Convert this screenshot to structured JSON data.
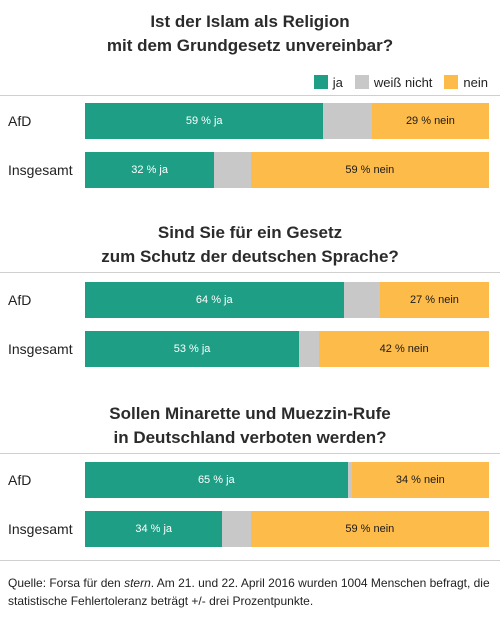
{
  "colors": {
    "ja": "#1e9e85",
    "weiss_nicht": "#c8c8c8",
    "nein": "#fdbb4a"
  },
  "legend": {
    "ja": "ja",
    "weiss_nicht": "weiß nicht",
    "nein": "nein"
  },
  "chart_data": [
    {
      "type": "bar",
      "orientation": "horizontal",
      "stacked": true,
      "title": [
        "Ist der Islam als Religion",
        "mit dem Grundgesetz unvereinbar?"
      ],
      "categories": [
        "AfD",
        "Insgesamt"
      ],
      "series": [
        {
          "name": "ja",
          "values": [
            59,
            32
          ],
          "labels": [
            "59 % ja",
            "32 % ja"
          ]
        },
        {
          "name": "weiß nicht",
          "values": [
            12,
            9
          ],
          "labels": [
            "",
            ""
          ]
        },
        {
          "name": "nein",
          "values": [
            29,
            59
          ],
          "labels": [
            "29 % nein",
            "59 % nein"
          ]
        }
      ],
      "xlim": [
        0,
        100
      ]
    },
    {
      "type": "bar",
      "orientation": "horizontal",
      "stacked": true,
      "title": [
        "Sind Sie für ein Gesetz",
        "zum Schutz der deutschen Sprache?"
      ],
      "categories": [
        "AfD",
        "Insgesamt"
      ],
      "series": [
        {
          "name": "ja",
          "values": [
            64,
            53
          ],
          "labels": [
            "64 % ja",
            "53 % ja"
          ]
        },
        {
          "name": "weiß nicht",
          "values": [
            9,
            5
          ],
          "labels": [
            "",
            ""
          ]
        },
        {
          "name": "nein",
          "values": [
            27,
            42
          ],
          "labels": [
            "27 % nein",
            "42 % nein"
          ]
        }
      ],
      "xlim": [
        0,
        100
      ]
    },
    {
      "type": "bar",
      "orientation": "horizontal",
      "stacked": true,
      "title": [
        "Sollen Minarette und Muezzin-Rufe",
        "in Deutschland verboten werden?"
      ],
      "categories": [
        "AfD",
        "Insgesamt"
      ],
      "series": [
        {
          "name": "ja",
          "values": [
            65,
            34
          ],
          "labels": [
            "65 % ja",
            "34 % ja"
          ]
        },
        {
          "name": "weiß nicht",
          "values": [
            1,
            7
          ],
          "labels": [
            "",
            ""
          ]
        },
        {
          "name": "nein",
          "values": [
            34,
            59
          ],
          "labels": [
            "34 % nein",
            "59 % nein"
          ]
        }
      ],
      "xlim": [
        0,
        100
      ]
    }
  ],
  "source": {
    "prefix": "Quelle: Forsa für den ",
    "publication": "stern",
    "suffix": ". Am 21. und 22. April 2016 wurden 1004 Menschen befragt, die statistische Fehlertoleranz beträgt +/- drei Prozentpunkte."
  }
}
